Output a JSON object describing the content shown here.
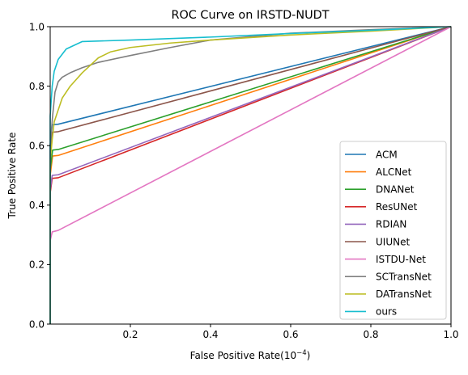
{
  "chart_data": {
    "type": "line",
    "title": "ROC Curve on IRSTD-NUDT",
    "xlabel": "False Positive Rate(10",
    "xlabel_sup": "−4",
    "xlabel_suffix": ")",
    "ylabel": "True Positive Rate",
    "xlim": [
      0.0,
      1.0
    ],
    "ylim": [
      0.0,
      1.0
    ],
    "xticks": [
      0.2,
      0.4,
      0.6,
      0.8,
      1.0
    ],
    "xtick_labels": [
      "0.2",
      "0.4",
      "0.6",
      "0.8",
      "1.0"
    ],
    "yticks": [
      0.0,
      0.2,
      0.4,
      0.6,
      0.8,
      1.0
    ],
    "ytick_labels": [
      "0.0",
      "0.2",
      "0.4",
      "0.6",
      "0.8",
      "1.0"
    ],
    "grid": false,
    "legend_position": "bottom-right",
    "series": [
      {
        "name": "ACM",
        "color": "#1f77b4",
        "points": [
          [
            0.0,
            0.0
          ],
          [
            0.0,
            0.6
          ],
          [
            0.005,
            0.67
          ],
          [
            0.02,
            0.672
          ],
          [
            1.0,
            1.0
          ]
        ]
      },
      {
        "name": "ALCNet",
        "color": "#ff7f0e",
        "points": [
          [
            0.0,
            0.0
          ],
          [
            0.0,
            0.5
          ],
          [
            0.006,
            0.565
          ],
          [
            0.02,
            0.567
          ],
          [
            1.0,
            1.0
          ]
        ]
      },
      {
        "name": "DNANet",
        "color": "#2ca02c",
        "points": [
          [
            0.0,
            0.0
          ],
          [
            0.0,
            0.52
          ],
          [
            0.006,
            0.585
          ],
          [
            0.02,
            0.587
          ],
          [
            1.0,
            1.0
          ]
        ]
      },
      {
        "name": "ResUNet",
        "color": "#d62728",
        "points": [
          [
            0.0,
            0.0
          ],
          [
            0.0,
            0.44
          ],
          [
            0.005,
            0.49
          ],
          [
            0.02,
            0.492
          ],
          [
            1.0,
            1.0
          ]
        ]
      },
      {
        "name": "RDIAN",
        "color": "#9467bd",
        "points": [
          [
            0.0,
            0.0
          ],
          [
            0.0,
            0.45
          ],
          [
            0.005,
            0.5
          ],
          [
            0.02,
            0.502
          ],
          [
            1.0,
            1.0
          ]
        ]
      },
      {
        "name": "UIUNet",
        "color": "#8c564b",
        "points": [
          [
            0.0,
            0.0
          ],
          [
            0.0,
            0.58
          ],
          [
            0.005,
            0.645
          ],
          [
            0.02,
            0.647
          ],
          [
            1.0,
            1.0
          ]
        ]
      },
      {
        "name": "ISTDU-Net",
        "color": "#e377c2",
        "points": [
          [
            0.0,
            0.0
          ],
          [
            0.0,
            0.28
          ],
          [
            0.005,
            0.31
          ],
          [
            0.02,
            0.315
          ],
          [
            1.0,
            1.0
          ]
        ]
      },
      {
        "name": "SCTransNet",
        "color": "#7f7f7f",
        "points": [
          [
            0.0,
            0.0
          ],
          [
            0.0,
            0.6
          ],
          [
            0.006,
            0.7
          ],
          [
            0.012,
            0.78
          ],
          [
            0.02,
            0.815
          ],
          [
            0.03,
            0.83
          ],
          [
            0.05,
            0.845
          ],
          [
            0.08,
            0.862
          ],
          [
            0.12,
            0.88
          ],
          [
            0.2,
            0.903
          ],
          [
            0.3,
            0.93
          ],
          [
            0.4,
            0.955
          ],
          [
            0.6,
            0.978
          ],
          [
            0.8,
            0.99
          ],
          [
            1.0,
            1.0
          ]
        ]
      },
      {
        "name": "DATransNet",
        "color": "#bcbd22",
        "points": [
          [
            0.0,
            0.0
          ],
          [
            0.0,
            0.55
          ],
          [
            0.005,
            0.62
          ],
          [
            0.01,
            0.68
          ],
          [
            0.02,
            0.72
          ],
          [
            0.03,
            0.76
          ],
          [
            0.05,
            0.8
          ],
          [
            0.08,
            0.845
          ],
          [
            0.12,
            0.895
          ],
          [
            0.15,
            0.915
          ],
          [
            0.2,
            0.93
          ],
          [
            0.3,
            0.945
          ],
          [
            0.4,
            0.955
          ],
          [
            0.6,
            0.972
          ],
          [
            0.8,
            0.985
          ],
          [
            1.0,
            1.0
          ]
        ]
      },
      {
        "name": "ours",
        "color": "#17becf",
        "points": [
          [
            0.0,
            0.0
          ],
          [
            0.0,
            0.7
          ],
          [
            0.005,
            0.8
          ],
          [
            0.01,
            0.85
          ],
          [
            0.02,
            0.89
          ],
          [
            0.04,
            0.925
          ],
          [
            0.08,
            0.95
          ],
          [
            0.2,
            0.955
          ],
          [
            0.4,
            0.965
          ],
          [
            0.6,
            0.977
          ],
          [
            0.8,
            0.988
          ],
          [
            1.0,
            1.0
          ]
        ]
      }
    ]
  }
}
